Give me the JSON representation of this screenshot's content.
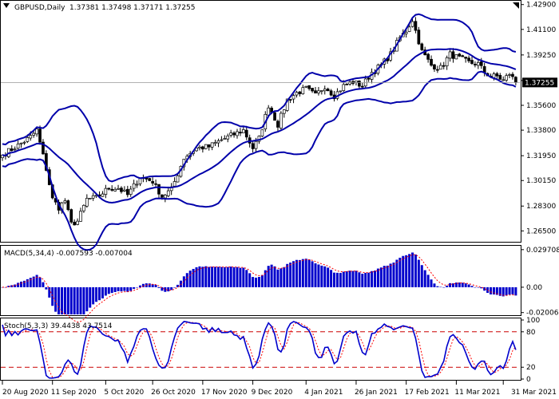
{
  "chart_data": [
    {
      "type": "candlestick",
      "title": "GBPUSD,Daily",
      "ohlc_header": "1.37381 1.37498 1.37171 1.37255",
      "current_price": 1.37255,
      "current_price_label": "1.37255",
      "ylim": [
        1.26,
        1.43
      ],
      "price_ticks": [
        1.429,
        1.411,
        1.3925,
        1.374,
        1.356,
        1.338,
        1.3195,
        1.3015,
        1.283,
        1.265
      ],
      "price_tick_labels": [
        "1.42900",
        "1.41100",
        "1.39250",
        "1.37400",
        "1.35600",
        "1.33800",
        "1.31950",
        "1.30150",
        "1.28300",
        "1.26500"
      ],
      "x_tick_labels": [
        "20 Aug 2020",
        "11 Sep 2020",
        "5 Oct 2020",
        "26 Oct 2020",
        "17 Nov 2020",
        "9 Dec 2020",
        "4 Jan 2021",
        "26 Jan 2021",
        "17 Feb 2021",
        "11 Mar 2021",
        "31 Mar 2021"
      ],
      "x_tick_index": [
        0,
        16,
        33,
        48,
        64,
        80,
        97,
        113,
        129,
        145,
        160
      ],
      "bar_count": 165,
      "close_anchors": [
        [
          0,
          1.32
        ],
        [
          5,
          1.327
        ],
        [
          9,
          1.333
        ],
        [
          11,
          1.338
        ],
        [
          14,
          1.31
        ],
        [
          16,
          1.288
        ],
        [
          18,
          1.282
        ],
        [
          20,
          1.287
        ],
        [
          22,
          1.27
        ],
        [
          24,
          1.272
        ],
        [
          27,
          1.288
        ],
        [
          30,
          1.289
        ],
        [
          34,
          1.296
        ],
        [
          37,
          1.296
        ],
        [
          40,
          1.291
        ],
        [
          44,
          1.304
        ],
        [
          48,
          1.301
        ],
        [
          51,
          1.29
        ],
        [
          54,
          1.295
        ],
        [
          58,
          1.318
        ],
        [
          62,
          1.325
        ],
        [
          66,
          1.326
        ],
        [
          70,
          1.331
        ],
        [
          74,
          1.335
        ],
        [
          77,
          1.338
        ],
        [
          80,
          1.325
        ],
        [
          82,
          1.332
        ],
        [
          85,
          1.356
        ],
        [
          88,
          1.342
        ],
        [
          91,
          1.36
        ],
        [
          94,
          1.365
        ],
        [
          97,
          1.368
        ],
        [
          100,
          1.363
        ],
        [
          103,
          1.37
        ],
        [
          106,
          1.363
        ],
        [
          109,
          1.37
        ],
        [
          112,
          1.373
        ],
        [
          115,
          1.37
        ],
        [
          118,
          1.38
        ],
        [
          121,
          1.385
        ],
        [
          124,
          1.393
        ],
        [
          127,
          1.405
        ],
        [
          129,
          1.41
        ],
        [
          131,
          1.418
        ],
        [
          132,
          1.41
        ],
        [
          134,
          1.395
        ],
        [
          137,
          1.385
        ],
        [
          140,
          1.383
        ],
        [
          143,
          1.393
        ],
        [
          146,
          1.39
        ],
        [
          149,
          1.387
        ],
        [
          152,
          1.386
        ],
        [
          154,
          1.38
        ],
        [
          156,
          1.377
        ],
        [
          158,
          1.377
        ],
        [
          160,
          1.374
        ],
        [
          162,
          1.379
        ],
        [
          164,
          1.37255
        ]
      ],
      "indicator": {
        "name": "Bollinger Bands",
        "period": 20,
        "deviations": 2,
        "color": "#0000aa"
      },
      "colors": {
        "bull": "#ffffff",
        "bear": "#000000",
        "wick": "#000000"
      }
    },
    {
      "type": "bar",
      "title": "MACD(5,34,4) -0.007593 -0.007004",
      "series": [
        {
          "name": "MACD",
          "color": "#0000cc"
        },
        {
          "name": "Signal",
          "color": "#ff0000"
        }
      ],
      "ylim": [
        -0.0215,
        0.0315
      ],
      "tick_values": [
        0.029708,
        0.0,
        -0.020061
      ],
      "tick_labels": [
        "0.029708",
        "0.00",
        "-0.020061"
      ]
    },
    {
      "type": "line",
      "title": "Stoch(5,3,3) 39.4438 43.7514",
      "series": [
        {
          "name": "%K",
          "color": "#0000cc"
        },
        {
          "name": "%D",
          "color": "#ff0000"
        }
      ],
      "ylim": [
        0,
        100
      ],
      "levels": [
        80,
        20
      ],
      "tick_values": [
        100,
        80,
        20,
        0
      ],
      "tick_labels": [
        "100",
        "80",
        "20",
        "0"
      ]
    }
  ]
}
